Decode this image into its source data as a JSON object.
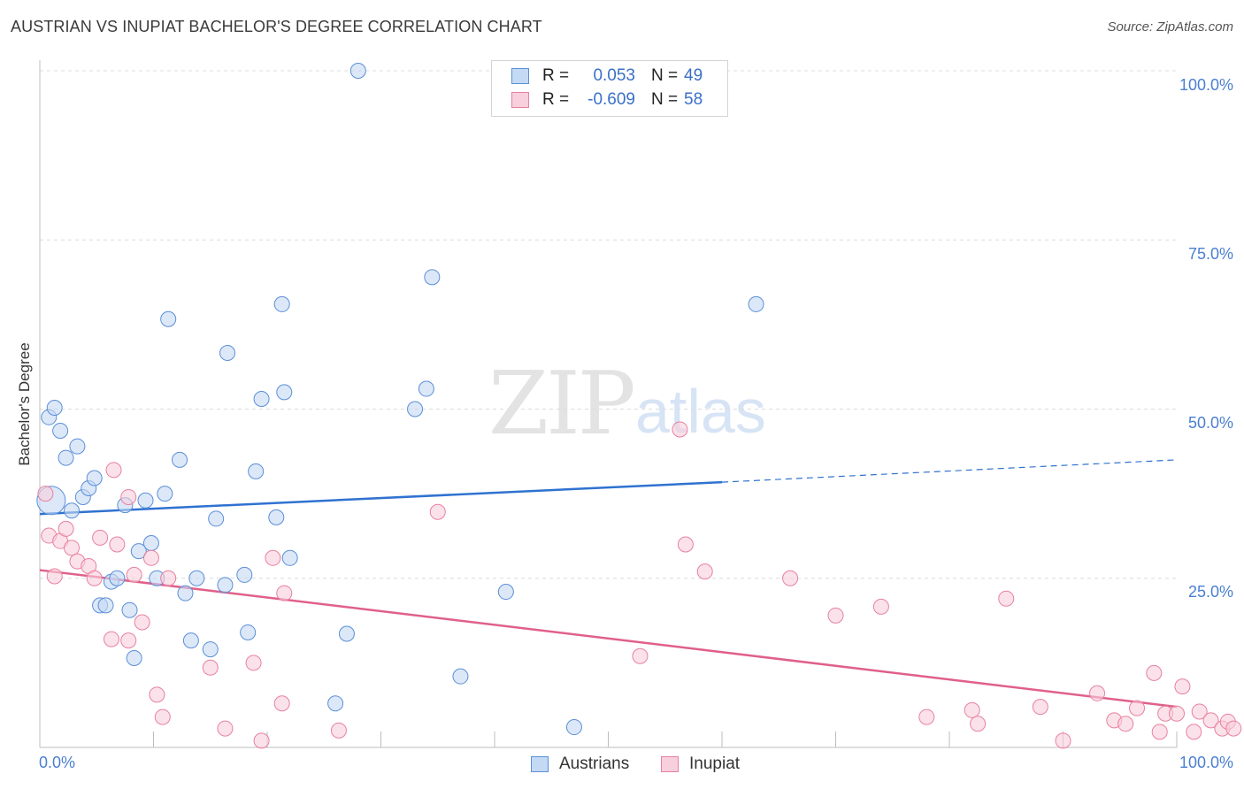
{
  "chart_data": {
    "type": "scatter",
    "title": "AUSTRIAN VS INUPIAT BACHELOR'S DEGREE CORRELATION CHART",
    "source": "Source: ZipAtlas.com",
    "xlabel": "",
    "ylabel": "Bachelor's Degree",
    "xlim": [
      0,
      100
    ],
    "ylim": [
      0,
      100
    ],
    "x_tick_labels": [
      "0.0%",
      "100.0%"
    ],
    "y_tick_labels": [
      "100.0%",
      "75.0%",
      "50.0%",
      "25.0%"
    ],
    "y_gridlines": [
      25,
      50,
      75,
      100
    ],
    "watermark": [
      "ZIP",
      "atlas"
    ],
    "stats": [
      {
        "r_label": "R =",
        "r_value": "0.053",
        "n_label": "N =",
        "n_value": "49"
      },
      {
        "r_label": "R =",
        "r_value": "-0.609",
        "n_label": "N =",
        "n_value": "58"
      }
    ],
    "series": [
      {
        "name": "Austrians",
        "color": "#5b8fd8",
        "fill": "#c4d9f4",
        "line_color": "#2f72d0",
        "trend": {
          "x0": 0,
          "y0": 34.5,
          "x1": 60,
          "y1": 39.2,
          "dashed_to": 100,
          "dashed_y": 42.5
        },
        "points": [
          [
            1,
            36.5
          ],
          [
            0.8,
            48.8
          ],
          [
            1.3,
            50.2
          ],
          [
            1.8,
            46.8
          ],
          [
            2.3,
            42.8
          ],
          [
            2.8,
            35.0
          ],
          [
            3.3,
            44.5
          ],
          [
            3.8,
            37.0
          ],
          [
            4.3,
            38.3
          ],
          [
            4.8,
            39.8
          ],
          [
            5.3,
            21.0
          ],
          [
            5.8,
            21.0
          ],
          [
            6.3,
            24.5
          ],
          [
            6.8,
            25.0
          ],
          [
            7.5,
            35.8
          ],
          [
            7.9,
            20.3
          ],
          [
            8.3,
            13.2
          ],
          [
            8.7,
            29.0
          ],
          [
            9.3,
            36.5
          ],
          [
            9.8,
            30.2
          ],
          [
            10.3,
            25.0
          ],
          [
            11,
            37.5
          ],
          [
            11.3,
            63.3
          ],
          [
            12.3,
            42.5
          ],
          [
            12.8,
            22.8
          ],
          [
            13.3,
            15.8
          ],
          [
            13.8,
            25.0
          ],
          [
            15.0,
            14.5
          ],
          [
            15.5,
            33.8
          ],
          [
            16.3,
            24.0
          ],
          [
            16.5,
            58.3
          ],
          [
            18.0,
            25.5
          ],
          [
            18.3,
            17.0
          ],
          [
            19.0,
            40.8
          ],
          [
            19.5,
            51.5
          ],
          [
            20.8,
            34.0
          ],
          [
            21.3,
            65.5
          ],
          [
            21.5,
            52.5
          ],
          [
            22.0,
            28.0
          ],
          [
            26.0,
            6.5
          ],
          [
            27.0,
            16.8
          ],
          [
            28.0,
            100.0
          ],
          [
            33.0,
            50.0
          ],
          [
            34.0,
            53.0
          ],
          [
            34.5,
            69.5
          ],
          [
            37.0,
            10.5
          ],
          [
            41.0,
            23.0
          ],
          [
            47.0,
            3.0
          ],
          [
            63.0,
            65.5
          ]
        ]
      },
      {
        "name": "Inupiat",
        "color": "#e8819f",
        "fill": "#f8cfdc",
        "line_color": "#e0608a",
        "trend": {
          "x0": 0,
          "y0": 26.2,
          "x1": 100,
          "y1": 6.0
        },
        "points": [
          [
            0.5,
            37.5
          ],
          [
            0.8,
            31.3
          ],
          [
            1.3,
            25.3
          ],
          [
            1.8,
            30.5
          ],
          [
            2.3,
            32.3
          ],
          [
            2.8,
            29.5
          ],
          [
            3.3,
            27.5
          ],
          [
            4.3,
            26.8
          ],
          [
            4.8,
            25.0
          ],
          [
            5.3,
            31.0
          ],
          [
            6.3,
            16.0
          ],
          [
            6.5,
            41.0
          ],
          [
            6.8,
            30.0
          ],
          [
            7.8,
            37.0
          ],
          [
            7.8,
            15.8
          ],
          [
            8.3,
            25.5
          ],
          [
            9.0,
            18.5
          ],
          [
            9.8,
            28.0
          ],
          [
            10.3,
            7.8
          ],
          [
            10.8,
            4.5
          ],
          [
            11.3,
            25.0
          ],
          [
            15.0,
            11.8
          ],
          [
            16.3,
            2.8
          ],
          [
            18.8,
            12.5
          ],
          [
            19.5,
            1.0
          ],
          [
            20.5,
            28.0
          ],
          [
            21.3,
            6.5
          ],
          [
            21.5,
            22.8
          ],
          [
            26.3,
            2.5
          ],
          [
            35.0,
            34.8
          ],
          [
            52.8,
            13.5
          ],
          [
            56.3,
            47.0
          ],
          [
            56.8,
            30.0
          ],
          [
            58.5,
            26.0
          ],
          [
            66.0,
            25.0
          ],
          [
            70.0,
            19.5
          ],
          [
            74.0,
            20.8
          ],
          [
            78.0,
            4.5
          ],
          [
            82.0,
            5.5
          ],
          [
            82.5,
            3.5
          ],
          [
            85.0,
            22.0
          ],
          [
            88.0,
            6.0
          ],
          [
            90.0,
            1.0
          ],
          [
            93.0,
            8.0
          ],
          [
            94.5,
            4.0
          ],
          [
            95.5,
            3.5
          ],
          [
            96.5,
            5.8
          ],
          [
            98.0,
            11.0
          ],
          [
            98.5,
            2.3
          ],
          [
            99.0,
            5.0
          ],
          [
            100.0,
            5.0
          ],
          [
            100.5,
            9.0
          ],
          [
            101.5,
            2.3
          ],
          [
            102.0,
            5.3
          ],
          [
            103.0,
            4.0
          ],
          [
            104.0,
            2.8
          ],
          [
            104.5,
            3.8
          ],
          [
            105.0,
            2.8
          ]
        ]
      }
    ]
  }
}
